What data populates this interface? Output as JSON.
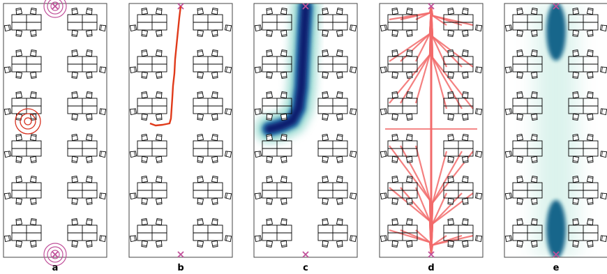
{
  "panels": [
    {
      "label": "a"
    },
    {
      "label": "b"
    },
    {
      "label": "c"
    },
    {
      "label": "d"
    },
    {
      "label": "e"
    }
  ],
  "colors": {
    "outline": "#000000",
    "entrance": "#c0509a",
    "target": "#d7301f",
    "path": "#e03a1a",
    "density_dark": "#0b1b6e",
    "density_mid": "#1e6aa8",
    "density_light": "#7fd0c4",
    "trajectories": "#f26a6a",
    "flow_dark": "#0b5f86",
    "flow_light": "#9adccb"
  },
  "icons": {
    "entrance": "cross-marker-icon",
    "target": "target-rings-icon",
    "chair": "chair-icon"
  }
}
